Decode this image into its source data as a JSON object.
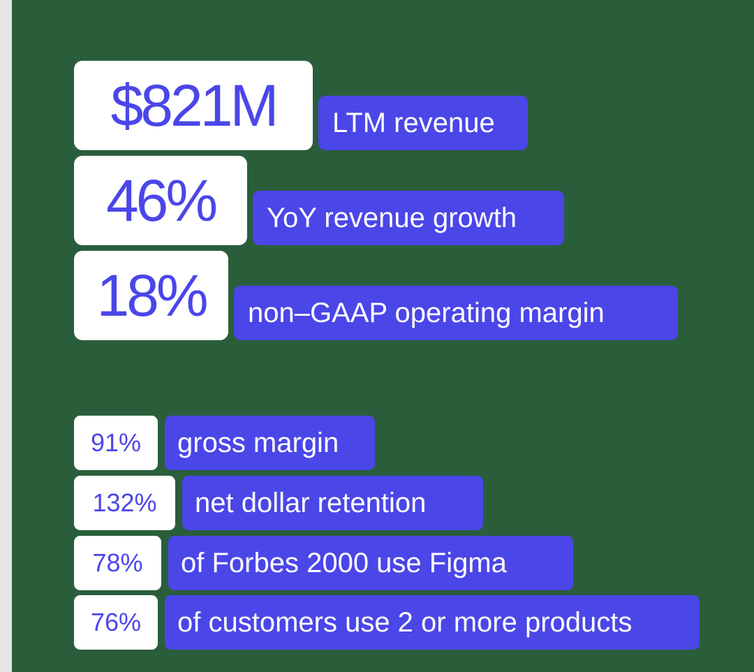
{
  "headline_stats": [
    {
      "value": "$821M",
      "label": "LTM revenue"
    },
    {
      "value": "46%",
      "label": "YoY revenue growth"
    },
    {
      "value": "18%",
      "label": "non–GAAP operating margin"
    }
  ],
  "detail_stats": [
    {
      "value": "91%",
      "label": "gross margin"
    },
    {
      "value": "132%",
      "label": "net dollar retention"
    },
    {
      "value": "78%",
      "label": "of Forbes 2000 use Figma"
    },
    {
      "value": "76%",
      "label": "of customers use 2 or more products"
    }
  ],
  "colors": {
    "background": "#2a5e3b",
    "accent": "#4b46e8",
    "value_bg": "#ffffff"
  }
}
